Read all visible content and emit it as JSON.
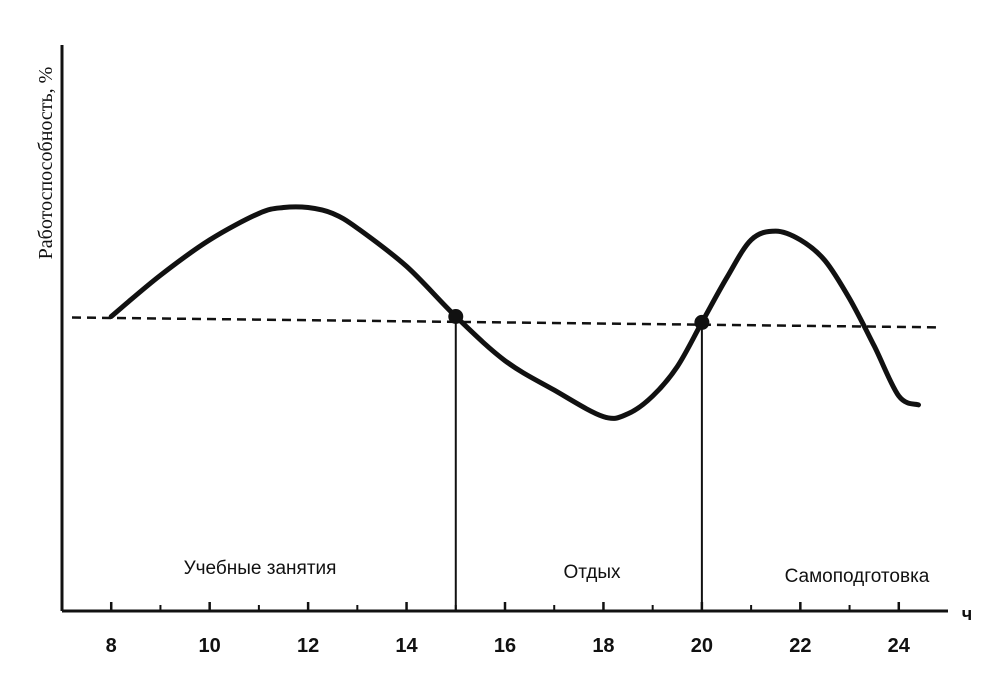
{
  "chart_data": {
    "type": "line",
    "title": "",
    "xlabel": "ч",
    "ylabel": "Работоспособность, %",
    "x_ticks": [
      8,
      10,
      12,
      14,
      16,
      18,
      20,
      22,
      24
    ],
    "xlim": [
      7.0,
      25.0
    ],
    "ylim": [
      0,
      100
    ],
    "grid": false,
    "series": [
      {
        "x": [
          8,
          9,
          10,
          11,
          11.5,
          12,
          12.5,
          13,
          14,
          15,
          16,
          17,
          18,
          18.5,
          19,
          19.5,
          20,
          20.5,
          21,
          21.5,
          22,
          22.5,
          23,
          23.5,
          24,
          24.4
        ],
        "y": [
          50,
          57,
          63,
          67.5,
          68.5,
          68.5,
          67.5,
          65,
          58.5,
          50,
          42.5,
          37.5,
          33,
          33.5,
          36.5,
          41.5,
          49,
          56.5,
          63,
          64.5,
          63,
          59.5,
          53,
          45,
          36.5,
          35
        ]
      }
    ],
    "reference_line": {
      "style": "dashed",
      "y_start": 50,
      "y_end": 48.5
    },
    "markers": [
      {
        "x": 15,
        "y": 50
      },
      {
        "x": 20,
        "y": 49
      }
    ],
    "dividers": [
      15,
      20
    ],
    "periods": [
      "Учебные занятия",
      "Отдых",
      "Самоподготовка"
    ]
  }
}
